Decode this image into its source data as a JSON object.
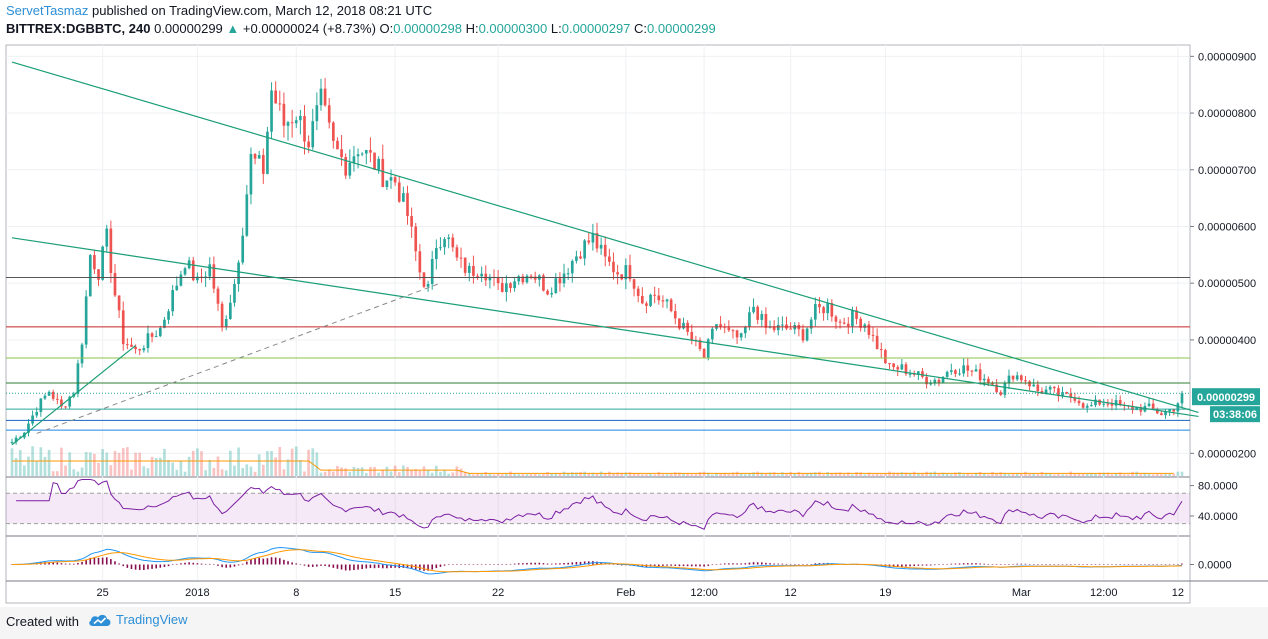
{
  "header": {
    "author": "ServetTasmaz",
    "published_text": " published on TradingView.com, March 12, 2018 08:21 UTC",
    "symbol": "BITTREX:DGBBTC, 240",
    "last": "0.00000299",
    "change": "+0.00000024 (+8.73%)",
    "o_label": "O:",
    "o_value": "0.00000298",
    "h_label": "H:",
    "h_value": "0.00000300",
    "l_label": "L:",
    "l_value": "0.00000297",
    "c_label": "C:",
    "c_value": "0.00000299"
  },
  "footer": {
    "created_with": "Created with",
    "brand": "TradingView"
  },
  "colors": {
    "up": "#26a69a",
    "down": "#ef5350",
    "upWick": "#26a69a",
    "rsi": "#7b1fa2",
    "macd": "#2196f3",
    "signal": "#ff9800",
    "trend": "#1b9e77",
    "badge": "#26a69a"
  },
  "chart_data": {
    "type": "candlestick",
    "y_axis": {
      "min": 1.6e-06,
      "max": 9.2e-06,
      "ticks": [
        {
          "value": 9e-06,
          "label": "0.00000900"
        },
        {
          "value": 8e-06,
          "label": "0.00000800"
        },
        {
          "value": 7e-06,
          "label": "0.00000700"
        },
        {
          "value": 6e-06,
          "label": "0.00000600"
        },
        {
          "value": 5e-06,
          "label": "0.00000500"
        },
        {
          "value": 4e-06,
          "label": "0.00000400"
        },
        {
          "value": 2e-06,
          "label": "0.00000200"
        }
      ]
    },
    "x_axis": {
      "ticks": [
        {
          "label": "25",
          "i": 22
        },
        {
          "label": "2018",
          "i": 45
        },
        {
          "label": "8",
          "i": 69
        },
        {
          "label": "15",
          "i": 93
        },
        {
          "label": "22",
          "i": 118
        },
        {
          "label": "Feb",
          "i": 149
        },
        {
          "label": "12:00",
          "i": 168
        },
        {
          "label": "12",
          "i": 189
        },
        {
          "label": "19",
          "i": 212
        },
        {
          "label": "Mar",
          "i": 245
        },
        {
          "label": "12:00",
          "i": 265
        },
        {
          "label": "12",
          "i": 283
        }
      ]
    },
    "price_path": [
      [
        0,
        2.2e-06
      ],
      [
        3,
        2.4e-06
      ],
      [
        6,
        2.8e-06
      ],
      [
        9,
        3.1e-06
      ],
      [
        12,
        2.8e-06
      ],
      [
        15,
        3.1e-06
      ],
      [
        17,
        4e-06
      ],
      [
        19,
        5.5e-06
      ],
      [
        21,
        5.2e-06
      ],
      [
        23,
        5.8e-06
      ],
      [
        25,
        4.8e-06
      ],
      [
        27,
        4e-06
      ],
      [
        30,
        3.8e-06
      ],
      [
        33,
        4e-06
      ],
      [
        36,
        4.2e-06
      ],
      [
        39,
        4.8e-06
      ],
      [
        42,
        5.4e-06
      ],
      [
        45,
        5e-06
      ],
      [
        48,
        5.3e-06
      ],
      [
        51,
        4.2e-06
      ],
      [
        54,
        5e-06
      ],
      [
        56,
        6e-06
      ],
      [
        58,
        7.2e-06
      ],
      [
        61,
        7e-06
      ],
      [
        63,
        8.4e-06
      ],
      [
        66,
        7.8e-06
      ],
      [
        69,
        8e-06
      ],
      [
        72,
        7.5e-06
      ],
      [
        75,
        8.2e-06
      ],
      [
        78,
        7.4e-06
      ],
      [
        81,
        7.1e-06
      ],
      [
        84,
        7.4e-06
      ],
      [
        87,
        7.2e-06
      ],
      [
        90,
        6.9e-06
      ],
      [
        93,
        6.8e-06
      ],
      [
        96,
        6.2e-06
      ],
      [
        99,
        5.2e-06
      ],
      [
        101,
        4.9e-06
      ],
      [
        103,
        5.7e-06
      ],
      [
        105,
        5.9e-06
      ],
      [
        108,
        5.4e-06
      ],
      [
        111,
        5.2e-06
      ],
      [
        114,
        5.3e-06
      ],
      [
        118,
        4.9e-06
      ],
      [
        122,
        5.1e-06
      ],
      [
        126,
        5.2e-06
      ],
      [
        130,
        4.9e-06
      ],
      [
        134,
        5.2e-06
      ],
      [
        138,
        5.6e-06
      ],
      [
        141,
        5.8e-06
      ],
      [
        144,
        5.4e-06
      ],
      [
        147,
        5.2e-06
      ],
      [
        150,
        5.2e-06
      ],
      [
        153,
        4.7e-06
      ],
      [
        156,
        4.8e-06
      ],
      [
        159,
        4.6e-06
      ],
      [
        162,
        4.3e-06
      ],
      [
        165,
        4e-06
      ],
      [
        168,
        3.7e-06
      ],
      [
        171,
        4.3e-06
      ],
      [
        174,
        4.1e-06
      ],
      [
        177,
        4e-06
      ],
      [
        180,
        4.6e-06
      ],
      [
        183,
        4.2e-06
      ],
      [
        186,
        4.2e-06
      ],
      [
        189,
        4.2e-06
      ],
      [
        192,
        4.1e-06
      ],
      [
        195,
        4.5e-06
      ],
      [
        198,
        4.6e-06
      ],
      [
        201,
        4.3e-06
      ],
      [
        204,
        4.4e-06
      ],
      [
        207,
        4.3e-06
      ],
      [
        210,
        3.9e-06
      ],
      [
        213,
        3.5e-06
      ],
      [
        216,
        3.5e-06
      ],
      [
        219,
        3.4e-06
      ],
      [
        222,
        3.3e-06
      ],
      [
        225,
        3.3e-06
      ],
      [
        228,
        3.5e-06
      ],
      [
        231,
        3.5e-06
      ],
      [
        234,
        3.4e-06
      ],
      [
        237,
        3.3e-06
      ],
      [
        240,
        3.1e-06
      ],
      [
        243,
        3.4e-06
      ],
      [
        246,
        3.3e-06
      ],
      [
        249,
        3.1e-06
      ],
      [
        252,
        3.1e-06
      ],
      [
        255,
        3e-06
      ],
      [
        258,
        3e-06
      ],
      [
        261,
        2.8e-06
      ],
      [
        264,
        2.9e-06
      ],
      [
        267,
        2.9e-06
      ],
      [
        270,
        2.8e-06
      ],
      [
        273,
        2.8e-06
      ],
      [
        276,
        2.8e-06
      ],
      [
        279,
        2.7e-06
      ],
      [
        282,
        2.8e-06
      ],
      [
        284,
        3e-06
      ]
    ],
    "n_candles": 285,
    "horizontal_levels": [
      {
        "value": 5.1e-06,
        "color": "#555555"
      },
      {
        "value": 4.23e-06,
        "color": "#c62828"
      },
      {
        "value": 3.68e-06,
        "color": "#8bc34a"
      },
      {
        "value": 3.24e-06,
        "color": "#2e7d32"
      },
      {
        "value": 2.78e-06,
        "color": "#26a69a"
      },
      {
        "value": 2.58e-06,
        "color": "#1565c0"
      },
      {
        "value": 2.41e-06,
        "color": "#1e88e5"
      }
    ],
    "trend_lines": [
      {
        "x1": 0,
        "y1": 8.9e-06,
        "x2": 288,
        "y2": 2.72e-06
      },
      {
        "x1": 0,
        "y1": 5.8e-06,
        "x2": 288,
        "y2": 2.65e-06
      },
      {
        "x1": 0,
        "y1": 2.15e-06,
        "x2": 30,
        "y2": 3.9e-06
      }
    ],
    "dashed_line": {
      "x1": 6,
      "y1": 2.35e-06,
      "x2": 104,
      "y2": 5e-06
    },
    "last_price_label": "0.00000299",
    "countdown_label": "03:38:06",
    "rsi": {
      "ticks": [
        {
          "value": 80,
          "label": "80.0000"
        },
        {
          "value": 40,
          "label": "40.0000"
        }
      ],
      "upper": 70,
      "lower": 30,
      "min": 15,
      "max": 90
    },
    "macd": {
      "ticks": [
        {
          "value": 0,
          "label": "0.0000"
        }
      ]
    }
  }
}
